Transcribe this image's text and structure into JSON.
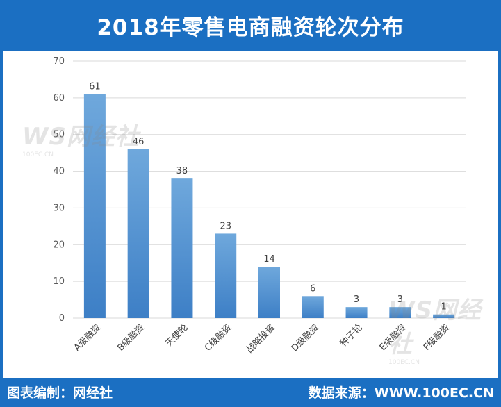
{
  "header": {
    "title": "2018年零售电商融资轮次分布"
  },
  "footer": {
    "source_left": "图表编制：网经社",
    "source_right": "数据来源：WWW.100EC.CN"
  },
  "watermark": {
    "text": "WS网经社",
    "url": "100EC.CN"
  },
  "colors": {
    "frame": "#1b6fc2",
    "bar_top": "#6fa8dc",
    "bar_bottom": "#3d7fc6",
    "grid": "#d9d9d9"
  },
  "chart_data": {
    "type": "bar",
    "categories": [
      "A级融资",
      "B级融资",
      "天使轮",
      "C级融资",
      "战略投资",
      "D级融资",
      "种子轮",
      "E级融资",
      "F级融资"
    ],
    "values": [
      61,
      46,
      38,
      23,
      14,
      6,
      3,
      3,
      1
    ],
    "title": "2018年零售电商融资轮次分布",
    "xlabel": "",
    "ylabel": "",
    "ylim": [
      0,
      70
    ],
    "yticks": [
      0,
      10,
      20,
      30,
      40,
      50,
      60,
      70
    ],
    "grid": true,
    "legend": "none"
  }
}
